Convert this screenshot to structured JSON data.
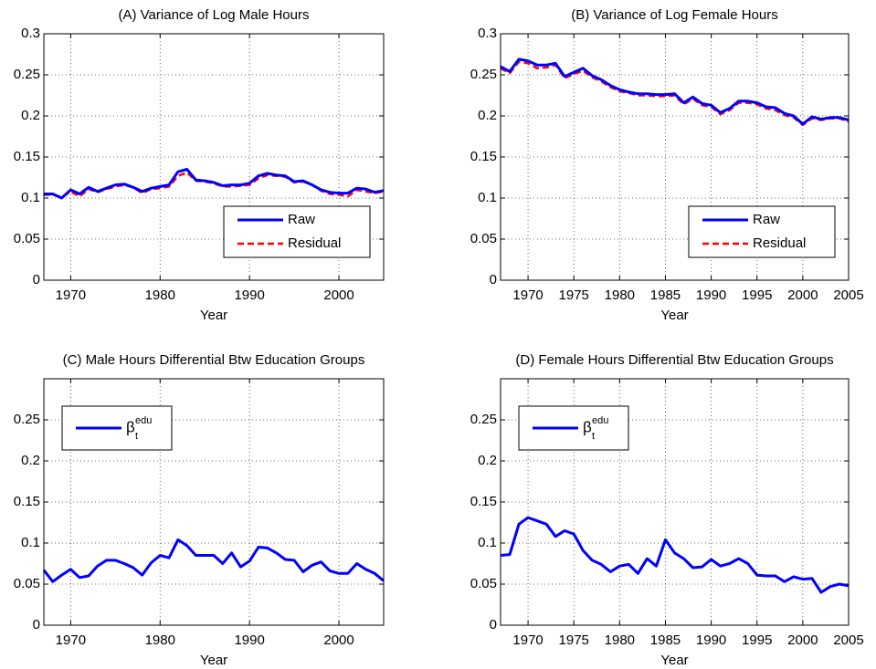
{
  "chart_data": [
    {
      "type": "line",
      "title": "(A) Variance of Log Male Hours",
      "xlabel": "Year",
      "x": [
        1967,
        1968,
        1969,
        1970,
        1971,
        1972,
        1973,
        1974,
        1975,
        1976,
        1977,
        1978,
        1979,
        1980,
        1981,
        1982,
        1983,
        1984,
        1985,
        1986,
        1987,
        1988,
        1989,
        1990,
        1991,
        1992,
        1993,
        1994,
        1995,
        1996,
        1997,
        1998,
        1999,
        2000,
        2001,
        2002,
        2003,
        2004,
        2005
      ],
      "series": [
        {
          "name": "Raw",
          "color": "#0000ff",
          "values": [
            0.105,
            0.105,
            0.1,
            0.11,
            0.105,
            0.113,
            0.108,
            0.112,
            0.116,
            0.117,
            0.113,
            0.108,
            0.112,
            0.114,
            0.116,
            0.132,
            0.135,
            0.122,
            0.121,
            0.119,
            0.115,
            0.116,
            0.116,
            0.118,
            0.127,
            0.13,
            0.128,
            0.127,
            0.12,
            0.121,
            0.116,
            0.11,
            0.107,
            0.106,
            0.106,
            0.112,
            0.111,
            0.107,
            0.109
          ]
        },
        {
          "name": "Residual",
          "color": "#ff0000",
          "dashed": true,
          "values": [
            0.104,
            0.104,
            0.101,
            0.108,
            0.102,
            0.111,
            0.107,
            0.111,
            0.114,
            0.116,
            0.113,
            0.106,
            0.111,
            0.112,
            0.114,
            0.127,
            0.131,
            0.121,
            0.12,
            0.118,
            0.114,
            0.114,
            0.115,
            0.116,
            0.124,
            0.128,
            0.127,
            0.126,
            0.119,
            0.12,
            0.116,
            0.109,
            0.105,
            0.104,
            0.102,
            0.11,
            0.108,
            0.106,
            0.108
          ]
        }
      ],
      "xlim": [
        1967,
        2005
      ],
      "xticks": [
        1970,
        1980,
        1990,
        2000
      ],
      "ylim": [
        0,
        0.3
      ],
      "yticks": [
        0,
        0.05,
        0.1,
        0.15,
        0.2,
        0.25,
        0.3
      ],
      "grid": true,
      "legend": "lower right"
    },
    {
      "type": "line",
      "title": "(B) Variance of Log Female Hours",
      "xlabel": "Year",
      "x": [
        1967,
        1968,
        1969,
        1970,
        1971,
        1972,
        1973,
        1974,
        1975,
        1976,
        1977,
        1978,
        1979,
        1980,
        1981,
        1982,
        1983,
        1984,
        1985,
        1986,
        1987,
        1988,
        1989,
        1990,
        1991,
        1992,
        1993,
        1994,
        1995,
        1996,
        1997,
        1998,
        1999,
        2000,
        2001,
        2002,
        2003,
        2004,
        2005
      ],
      "series": [
        {
          "name": "Raw",
          "color": "#0000ff",
          "values": [
            0.26,
            0.254,
            0.269,
            0.267,
            0.262,
            0.262,
            0.264,
            0.248,
            0.253,
            0.258,
            0.249,
            0.244,
            0.237,
            0.232,
            0.229,
            0.227,
            0.227,
            0.226,
            0.226,
            0.227,
            0.216,
            0.223,
            0.215,
            0.213,
            0.204,
            0.209,
            0.218,
            0.218,
            0.216,
            0.211,
            0.21,
            0.203,
            0.2,
            0.19,
            0.199,
            0.196,
            0.198,
            0.198,
            0.195
          ]
        },
        {
          "name": "Residual",
          "color": "#ff0000",
          "dashed": true,
          "values": [
            0.258,
            0.252,
            0.266,
            0.264,
            0.258,
            0.259,
            0.262,
            0.246,
            0.251,
            0.255,
            0.247,
            0.242,
            0.235,
            0.23,
            0.228,
            0.225,
            0.225,
            0.224,
            0.224,
            0.225,
            0.214,
            0.221,
            0.213,
            0.211,
            0.202,
            0.207,
            0.216,
            0.216,
            0.214,
            0.209,
            0.207,
            0.201,
            0.198,
            0.189,
            0.197,
            0.195,
            0.197,
            0.197,
            0.193
          ]
        }
      ],
      "xlim": [
        1967,
        2005
      ],
      "xticks": [
        1970,
        1975,
        1980,
        1985,
        1990,
        1995,
        2000,
        2005
      ],
      "ylim": [
        0,
        0.3
      ],
      "yticks": [
        0,
        0.05,
        0.1,
        0.15,
        0.2,
        0.25,
        0.3
      ],
      "grid": true,
      "legend": "lower right"
    },
    {
      "type": "line",
      "title": "(C) Male Hours Differential Btw Education Groups",
      "xlabel": "Year",
      "x": [
        1967,
        1968,
        1969,
        1970,
        1971,
        1972,
        1973,
        1974,
        1975,
        1976,
        1977,
        1978,
        1979,
        1980,
        1981,
        1982,
        1983,
        1984,
        1985,
        1986,
        1987,
        1988,
        1989,
        1990,
        1991,
        1992,
        1993,
        1994,
        1995,
        1996,
        1997,
        1998,
        1999,
        2000,
        2001,
        2002,
        2003,
        2004,
        2005
      ],
      "series": [
        {
          "name": "β",
          "subscript": "t",
          "superscript": "edu",
          "color": "#0000ff",
          "values": [
            0.067,
            0.053,
            0.061,
            0.068,
            0.058,
            0.06,
            0.072,
            0.079,
            0.079,
            0.075,
            0.07,
            0.061,
            0.076,
            0.085,
            0.082,
            0.104,
            0.097,
            0.085,
            0.085,
            0.085,
            0.075,
            0.088,
            0.071,
            0.078,
            0.095,
            0.094,
            0.088,
            0.08,
            0.079,
            0.065,
            0.073,
            0.077,
            0.066,
            0.063,
            0.063,
            0.075,
            0.068,
            0.063,
            0.054
          ]
        }
      ],
      "xlim": [
        1967,
        2005
      ],
      "xticks": [
        1970,
        1980,
        1990,
        2000
      ],
      "ylim": [
        0,
        0.3
      ],
      "yticks": [
        0,
        0.05,
        0.1,
        0.15,
        0.2,
        0.25
      ],
      "grid": true,
      "legend": "upper left"
    },
    {
      "type": "line",
      "title": "(D) Female Hours Differential Btw Education Groups",
      "xlabel": "Year",
      "x": [
        1967,
        1968,
        1969,
        1970,
        1971,
        1972,
        1973,
        1974,
        1975,
        1976,
        1977,
        1978,
        1979,
        1980,
        1981,
        1982,
        1983,
        1984,
        1985,
        1986,
        1987,
        1988,
        1989,
        1990,
        1991,
        1992,
        1993,
        1994,
        1995,
        1996,
        1997,
        1998,
        1999,
        2000,
        2001,
        2002,
        2003,
        2004,
        2005
      ],
      "series": [
        {
          "name": "β",
          "subscript": "t",
          "superscript": "edu",
          "color": "#0000ff",
          "values": [
            0.085,
            0.086,
            0.123,
            0.131,
            0.127,
            0.123,
            0.108,
            0.115,
            0.111,
            0.091,
            0.079,
            0.074,
            0.065,
            0.072,
            0.074,
            0.063,
            0.081,
            0.072,
            0.104,
            0.088,
            0.081,
            0.07,
            0.071,
            0.08,
            0.072,
            0.075,
            0.081,
            0.075,
            0.061,
            0.06,
            0.06,
            0.053,
            0.059,
            0.056,
            0.057,
            0.04,
            0.047,
            0.05,
            0.048
          ]
        }
      ],
      "xlim": [
        1967,
        2005
      ],
      "xticks": [
        1970,
        1975,
        1980,
        1985,
        1990,
        1995,
        2000,
        2005
      ],
      "ylim": [
        0,
        0.3
      ],
      "yticks": [
        0,
        0.05,
        0.1,
        0.15,
        0.2,
        0.25
      ],
      "grid": true,
      "legend": "upper left"
    }
  ]
}
